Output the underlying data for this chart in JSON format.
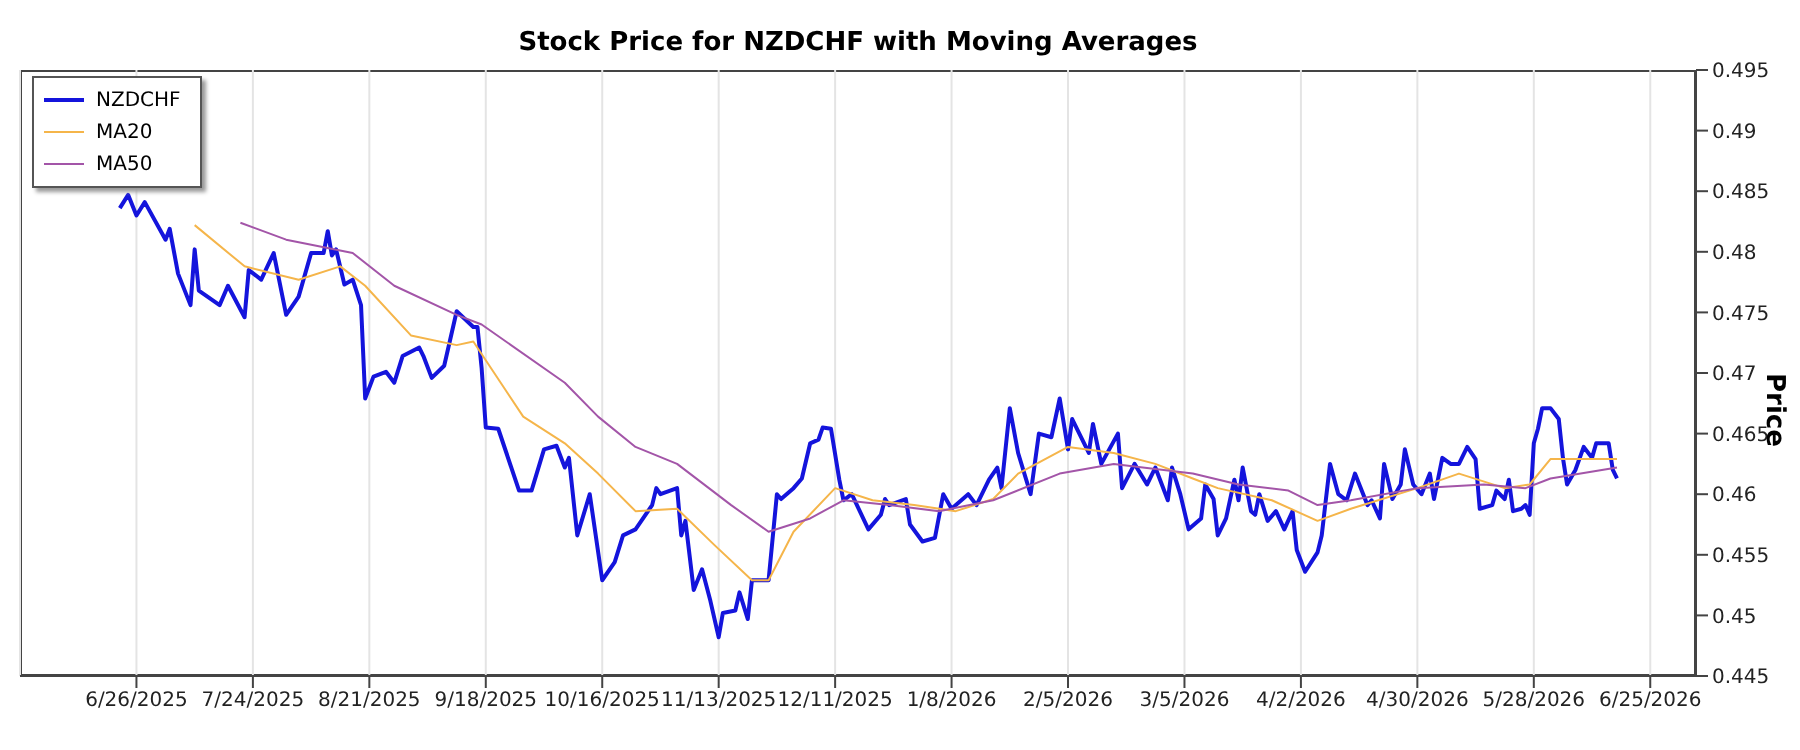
{
  "chart_data": {
    "type": "line",
    "title": "Stock Price for NZDCHF with Moving Averages",
    "ylabel": "Price",
    "xlim": [
      "2025-05-29",
      "2026-07-06"
    ],
    "ylim": [
      0.445,
      0.495
    ],
    "yticks": [
      0.445,
      0.45,
      0.455,
      0.46,
      0.465,
      0.47,
      0.475,
      0.48,
      0.485,
      0.49,
      0.495
    ],
    "xticks": [
      {
        "value": "2025-06-26",
        "label": "6/26/2025"
      },
      {
        "value": "2025-07-24",
        "label": "7/24/2025"
      },
      {
        "value": "2025-08-21",
        "label": "8/21/2025"
      },
      {
        "value": "2025-09-18",
        "label": "9/18/2025"
      },
      {
        "value": "2025-10-16",
        "label": "10/16/2025"
      },
      {
        "value": "2025-11-13",
        "label": "11/13/2025"
      },
      {
        "value": "2025-12-11",
        "label": "12/11/2025"
      },
      {
        "value": "2026-01-08",
        "label": "1/8/2026"
      },
      {
        "value": "2026-02-05",
        "label": "2/5/2026"
      },
      {
        "value": "2026-03-05",
        "label": "3/5/2026"
      },
      {
        "value": "2026-04-02",
        "label": "4/2/2026"
      },
      {
        "value": "2026-04-30",
        "label": "4/30/2026"
      },
      {
        "value": "2026-05-28",
        "label": "5/28/2026"
      },
      {
        "value": "2026-06-25",
        "label": "6/25/2026"
      }
    ],
    "grid": "x",
    "legend": "top left",
    "line_style": "solid",
    "series": [
      {
        "name": "NZDCHF",
        "color": "#1414dc",
        "x": [
          "2025-06-22",
          "2025-06-24",
          "2025-06-26",
          "2025-06-28",
          "2025-07-03",
          "2025-07-04",
          "2025-07-06",
          "2025-07-09",
          "2025-07-10",
          "2025-07-11",
          "2025-07-16",
          "2025-07-18",
          "2025-07-22",
          "2025-07-23",
          "2025-07-26",
          "2025-07-29",
          "2025-08-01",
          "2025-08-04",
          "2025-08-07",
          "2025-08-10",
          "2025-08-11",
          "2025-08-12",
          "2025-08-13",
          "2025-08-15",
          "2025-08-17",
          "2025-08-19",
          "2025-08-20",
          "2025-08-22",
          "2025-08-25",
          "2025-08-27",
          "2025-08-29",
          "2025-09-02",
          "2025-09-03",
          "2025-09-05",
          "2025-09-08",
          "2025-09-11",
          "2025-09-15",
          "2025-09-16",
          "2025-09-17",
          "2025-09-18",
          "2025-09-21",
          "2025-09-26",
          "2025-09-29",
          "2025-10-02",
          "2025-10-05",
          "2025-10-07",
          "2025-10-08",
          "2025-10-10",
          "2025-10-13",
          "2025-10-16",
          "2025-10-19",
          "2025-10-21",
          "2025-10-24",
          "2025-10-28",
          "2025-10-29",
          "2025-10-30",
          "2025-11-03",
          "2025-11-04",
          "2025-11-05",
          "2025-11-07",
          "2025-11-09",
          "2025-11-11",
          "2025-11-13",
          "2025-11-14",
          "2025-11-17",
          "2025-11-18",
          "2025-11-20",
          "2025-11-21",
          "2025-11-25",
          "2025-11-27",
          "2025-11-28",
          "2025-12-01",
          "2025-12-03",
          "2025-12-05",
          "2025-12-07",
          "2025-12-08",
          "2025-12-10",
          "2025-12-12",
          "2025-12-13",
          "2025-12-15",
          "2025-12-19",
          "2025-12-22",
          "2025-12-23",
          "2025-12-24",
          "2025-12-28",
          "2025-12-29",
          "2026-01-01",
          "2026-01-04",
          "2026-01-06",
          "2026-01-08",
          "2026-01-12",
          "2026-01-14",
          "2026-01-17",
          "2026-01-19",
          "2026-01-20",
          "2026-01-22",
          "2026-01-24",
          "2026-01-27",
          "2026-01-29",
          "2026-02-01",
          "2026-02-03",
          "2026-02-05",
          "2026-02-06",
          "2026-02-10",
          "2026-02-11",
          "2026-02-13",
          "2026-02-17",
          "2026-02-18",
          "2026-02-21",
          "2026-02-24",
          "2026-02-26",
          "2026-03-01",
          "2026-03-02",
          "2026-03-04",
          "2026-03-06",
          "2026-03-09",
          "2026-03-10",
          "2026-03-12",
          "2026-03-13",
          "2026-03-15",
          "2026-03-17",
          "2026-03-18",
          "2026-03-19",
          "2026-03-21",
          "2026-03-22",
          "2026-03-23",
          "2026-03-25",
          "2026-03-27",
          "2026-03-29",
          "2026-03-31",
          "2026-04-01",
          "2026-04-03",
          "2026-04-06",
          "2026-04-07",
          "2026-04-09",
          "2026-04-11",
          "2026-04-13",
          "2026-04-15",
          "2026-04-18",
          "2026-04-19",
          "2026-04-21",
          "2026-04-22",
          "2026-04-24",
          "2026-04-26",
          "2026-04-27",
          "2026-04-29",
          "2026-05-01",
          "2026-05-03",
          "2026-05-04",
          "2026-05-06",
          "2026-05-08",
          "2026-05-10",
          "2026-05-12",
          "2026-05-14",
          "2026-05-15",
          "2026-05-18",
          "2026-05-19",
          "2026-05-21",
          "2026-05-22",
          "2026-05-23",
          "2026-05-25",
          "2026-05-26",
          "2026-05-27",
          "2026-05-28",
          "2026-05-29",
          "2026-05-30",
          "2026-06-01",
          "2026-06-03",
          "2026-06-04",
          "2026-06-05",
          "2026-06-07",
          "2026-06-09",
          "2026-06-11",
          "2026-06-12",
          "2026-06-15",
          "2026-06-16",
          "2026-06-17"
        ],
        "values": [
          0.4836,
          0.4847,
          0.483,
          0.4841,
          0.481,
          0.4819,
          0.4782,
          0.4756,
          0.4802,
          0.4768,
          0.4756,
          0.4772,
          0.4746,
          0.4785,
          0.4777,
          0.4799,
          0.4748,
          0.4763,
          0.4799,
          0.4799,
          0.4817,
          0.4797,
          0.4802,
          0.4773,
          0.4777,
          0.4756,
          0.4679,
          0.4697,
          0.4701,
          0.4692,
          0.4714,
          0.4721,
          0.4714,
          0.4696,
          0.4706,
          0.4751,
          0.4738,
          0.4738,
          0.4704,
          0.4655,
          0.4654,
          0.4603,
          0.4603,
          0.4637,
          0.464,
          0.4622,
          0.463,
          0.4566,
          0.46,
          0.4529,
          0.4544,
          0.4566,
          0.4571,
          0.4591,
          0.4605,
          0.46,
          0.4605,
          0.4566,
          0.4578,
          0.4521,
          0.4538,
          0.4512,
          0.4482,
          0.4502,
          0.4504,
          0.4519,
          0.4497,
          0.4529,
          0.4529,
          0.46,
          0.4596,
          0.4605,
          0.4613,
          0.4642,
          0.4645,
          0.4655,
          0.4654,
          0.4612,
          0.4595,
          0.46,
          0.4571,
          0.4583,
          0.4596,
          0.4591,
          0.4596,
          0.4575,
          0.4561,
          0.4564,
          0.46,
          0.4588,
          0.46,
          0.4591,
          0.4612,
          0.4622,
          0.4605,
          0.4671,
          0.4634,
          0.46,
          0.465,
          0.4647,
          0.4679,
          0.4637,
          0.4662,
          0.4634,
          0.4658,
          0.4625,
          0.465,
          0.4605,
          0.4625,
          0.4608,
          0.4622,
          0.4595,
          0.4622,
          0.46,
          0.4571,
          0.458,
          0.4608,
          0.4596,
          0.4566,
          0.458,
          0.4612,
          0.4595,
          0.4622,
          0.4586,
          0.4583,
          0.46,
          0.4578,
          0.4586,
          0.4571,
          0.4586,
          0.4554,
          0.4536,
          0.4552,
          0.4566,
          0.4625,
          0.46,
          0.4595,
          0.4617,
          0.4591,
          0.4595,
          0.458,
          0.4625,
          0.4596,
          0.4608,
          0.4637,
          0.4608,
          0.46,
          0.4617,
          0.4596,
          0.463,
          0.4625,
          0.4625,
          0.4639,
          0.4629,
          0.4588,
          0.4591,
          0.4603,
          0.4596,
          0.4612,
          0.4586,
          0.4588,
          0.4591,
          0.4583,
          0.4642,
          0.4654,
          0.4671,
          0.4671,
          0.4662,
          0.463,
          0.4608,
          0.462,
          0.4639,
          0.463,
          0.4642,
          0.4642,
          0.462,
          0.4613
        ]
      },
      {
        "name": "MA20",
        "color": "#f5b54a",
        "x": [
          "2025-07-10",
          "2025-07-22",
          "2025-08-04",
          "2025-08-14",
          "2025-08-20",
          "2025-08-31",
          "2025-09-11",
          "2025-09-15",
          "2025-09-27",
          "2025-10-07",
          "2025-10-15",
          "2025-10-24",
          "2025-11-03",
          "2025-11-12",
          "2025-11-21",
          "2025-11-25",
          "2025-12-01",
          "2025-12-11",
          "2025-12-20",
          "2025-12-30",
          "2026-01-09",
          "2026-01-18",
          "2026-01-24",
          "2026-02-05",
          "2026-02-16",
          "2026-02-26",
          "2026-03-07",
          "2026-03-13",
          "2026-03-26",
          "2026-04-06",
          "2026-04-14",
          "2026-04-30",
          "2026-05-10",
          "2026-05-21",
          "2026-05-27",
          "2026-06-01",
          "2026-06-09",
          "2026-06-17"
        ],
        "values": [
          0.4822,
          0.4788,
          0.4777,
          0.4788,
          0.4772,
          0.4731,
          0.4723,
          0.4726,
          0.4664,
          0.4642,
          0.4617,
          0.4586,
          0.4588,
          0.4558,
          0.4529,
          0.4529,
          0.4569,
          0.4605,
          0.4595,
          0.4591,
          0.4586,
          0.4596,
          0.4617,
          0.4639,
          0.4634,
          0.4625,
          0.4613,
          0.4605,
          0.4595,
          0.4578,
          0.4588,
          0.4605,
          0.4617,
          0.4605,
          0.4608,
          0.4629,
          0.4629,
          0.4629
        ]
      },
      {
        "name": "MA50",
        "color": "#a355a8",
        "x": [
          "2025-07-21",
          "2025-08-01",
          "2025-08-17",
          "2025-08-27",
          "2025-09-11",
          "2025-09-17",
          "2025-10-07",
          "2025-10-15",
          "2025-10-24",
          "2025-11-03",
          "2025-11-16",
          "2025-11-25",
          "2025-12-05",
          "2025-12-13",
          "2025-12-24",
          "2026-01-05",
          "2026-01-18",
          "2026-02-03",
          "2026-02-16",
          "2026-03-07",
          "2026-03-18",
          "2026-03-30",
          "2026-04-06",
          "2026-04-14",
          "2026-04-30",
          "2026-05-16",
          "2026-05-26",
          "2026-06-01",
          "2026-06-17"
        ],
        "values": [
          0.4824,
          0.481,
          0.4799,
          0.4772,
          0.4748,
          0.474,
          0.4692,
          0.4664,
          0.4639,
          0.4625,
          0.4591,
          0.4569,
          0.458,
          0.4595,
          0.4591,
          0.4586,
          0.4595,
          0.4617,
          0.4625,
          0.4617,
          0.4608,
          0.4603,
          0.4591,
          0.4595,
          0.4605,
          0.4608,
          0.4605,
          0.4613,
          0.4622
        ]
      }
    ]
  }
}
